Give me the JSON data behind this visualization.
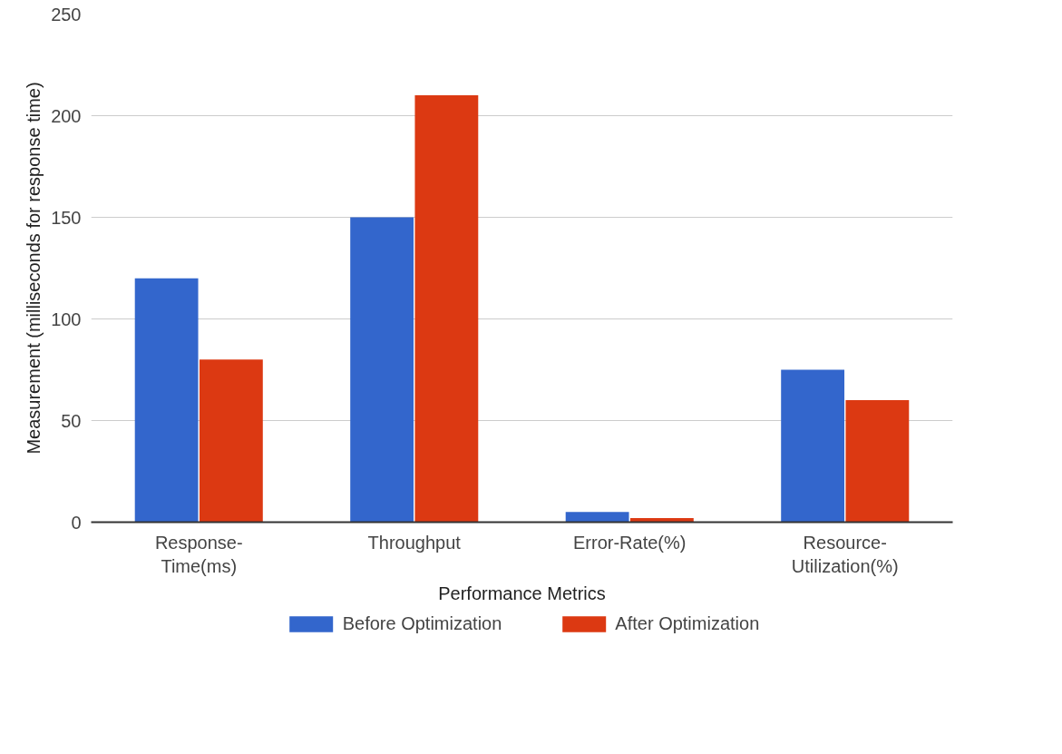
{
  "chart_data": {
    "type": "bar",
    "xlabel": "Performance Metrics",
    "ylabel": "Measurement (milliseconds for response time)",
    "categories": [
      "Response-Time(ms)",
      "Throughput",
      "Error-Rate(%)",
      "Resource-Utilization(%)"
    ],
    "series": [
      {
        "name": "Before Optimization",
        "color": "#3366cc",
        "values": [
          120,
          150,
          5,
          75
        ]
      },
      {
        "name": "After Optimization",
        "color": "#dc3912",
        "values": [
          80,
          210,
          2,
          60
        ]
      }
    ],
    "ylim": [
      0,
      250
    ],
    "yticks": [
      0,
      50,
      100,
      150,
      200,
      250
    ],
    "grid": "y",
    "legend": "bottom"
  }
}
